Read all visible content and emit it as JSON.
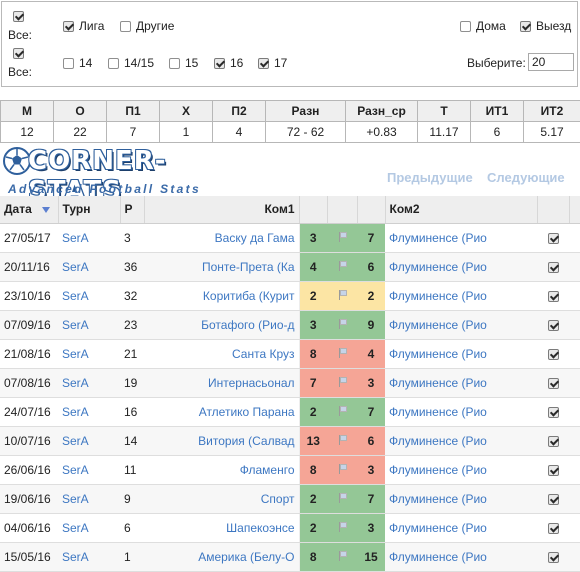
{
  "filters": {
    "all_label": "Все:",
    "tournament": {
      "all_checked": true,
      "league_label": "Лига",
      "league_checked": true,
      "other_label": "Другие",
      "other_checked": false
    },
    "venue": {
      "home_label": "Дома",
      "home_checked": false,
      "away_label": "Выезд",
      "away_checked": true
    },
    "seasons": {
      "all_checked": true,
      "items": [
        {
          "label": "14",
          "checked": false
        },
        {
          "label": "14/15",
          "checked": false
        },
        {
          "label": "15",
          "checked": false
        },
        {
          "label": "16",
          "checked": true
        },
        {
          "label": "17",
          "checked": true
        }
      ]
    },
    "choose_label": "Выберите:",
    "choose_value": "20"
  },
  "summary": {
    "headers": [
      "М",
      "О",
      "П1",
      "Х",
      "П2",
      "Разн",
      "Разн_ср",
      "Т",
      "ИТ1",
      "ИТ2"
    ],
    "values": [
      "12",
      "22",
      "7",
      "1",
      "4",
      "72 - 62",
      "+0.83",
      "11.17",
      "6",
      "5.17"
    ]
  },
  "logo": {
    "title": "CORNER-STATS",
    "subtitle": "Advanced Football Stats"
  },
  "nav": {
    "prev_label": "Предыдущие",
    "next_label": "Следующие"
  },
  "colors": {
    "green": "#94c796",
    "red": "#f5a596",
    "yellow": "#fce5a4",
    "accent_link": "#3d77c2"
  },
  "table": {
    "headers": {
      "date": "Дата",
      "tour": "Турн",
      "round": "Р",
      "home": "Ком1",
      "away": "Ком2"
    },
    "rows": [
      {
        "date": "27/05/17",
        "tour": "SerA",
        "round": "3",
        "home": "Васку да Гама",
        "home_score": "3",
        "home_color": "green",
        "away_score": "7",
        "away_color": "green",
        "away": "Флуминенсе (Рио",
        "checked": true
      },
      {
        "date": "20/11/16",
        "tour": "SerA",
        "round": "36",
        "home": "Понте-Прета (Ка",
        "home_score": "4",
        "home_color": "green",
        "away_score": "6",
        "away_color": "green",
        "away": "Флуминенсе (Рио",
        "checked": true
      },
      {
        "date": "23/10/16",
        "tour": "SerA",
        "round": "32",
        "home": "Коритиба (Курит",
        "home_score": "2",
        "home_color": "yellow",
        "away_score": "2",
        "away_color": "yellow",
        "away": "Флуминенсе (Рио",
        "checked": true
      },
      {
        "date": "07/09/16",
        "tour": "SerA",
        "round": "23",
        "home": "Ботафого (Рио-д",
        "home_score": "3",
        "home_color": "green",
        "away_score": "9",
        "away_color": "green",
        "away": "Флуминенсе (Рио",
        "checked": true
      },
      {
        "date": "21/08/16",
        "tour": "SerA",
        "round": "21",
        "home": "Санта Круз",
        "home_score": "8",
        "home_color": "red",
        "away_score": "4",
        "away_color": "red",
        "away": "Флуминенсе (Рио",
        "checked": true
      },
      {
        "date": "07/08/16",
        "tour": "SerA",
        "round": "19",
        "home": "Интернасьонал",
        "home_score": "7",
        "home_color": "red",
        "away_score": "3",
        "away_color": "red",
        "away": "Флуминенсе (Рио",
        "checked": true
      },
      {
        "date": "24/07/16",
        "tour": "SerA",
        "round": "16",
        "home": "Атлетико Парана",
        "home_score": "2",
        "home_color": "green",
        "away_score": "7",
        "away_color": "green",
        "away": "Флуминенсе (Рио",
        "checked": true
      },
      {
        "date": "10/07/16",
        "tour": "SerA",
        "round": "14",
        "home": "Витория (Салвад",
        "home_score": "13",
        "home_color": "red",
        "away_score": "6",
        "away_color": "red",
        "away": "Флуминенсе (Рио",
        "checked": true
      },
      {
        "date": "26/06/16",
        "tour": "SerA",
        "round": "11",
        "home": "Фламенго",
        "home_score": "8",
        "home_color": "red",
        "away_score": "3",
        "away_color": "red",
        "away": "Флуминенсе (Рио",
        "checked": true
      },
      {
        "date": "19/06/16",
        "tour": "SerA",
        "round": "9",
        "home": "Спорт",
        "home_score": "2",
        "home_color": "green",
        "away_score": "7",
        "away_color": "green",
        "away": "Флуминенсе (Рио",
        "checked": true
      },
      {
        "date": "04/06/16",
        "tour": "SerA",
        "round": "6",
        "home": "Шапекоэнсе",
        "home_score": "2",
        "home_color": "green",
        "away_score": "3",
        "away_color": "green",
        "away": "Флуминенсе (Рио",
        "checked": true
      },
      {
        "date": "15/05/16",
        "tour": "SerA",
        "round": "1",
        "home": "Америка (Белу-О",
        "home_score": "8",
        "home_color": "green",
        "away_score": "15",
        "away_color": "green",
        "away": "Флуминенсе (Рио",
        "checked": true
      }
    ]
  }
}
